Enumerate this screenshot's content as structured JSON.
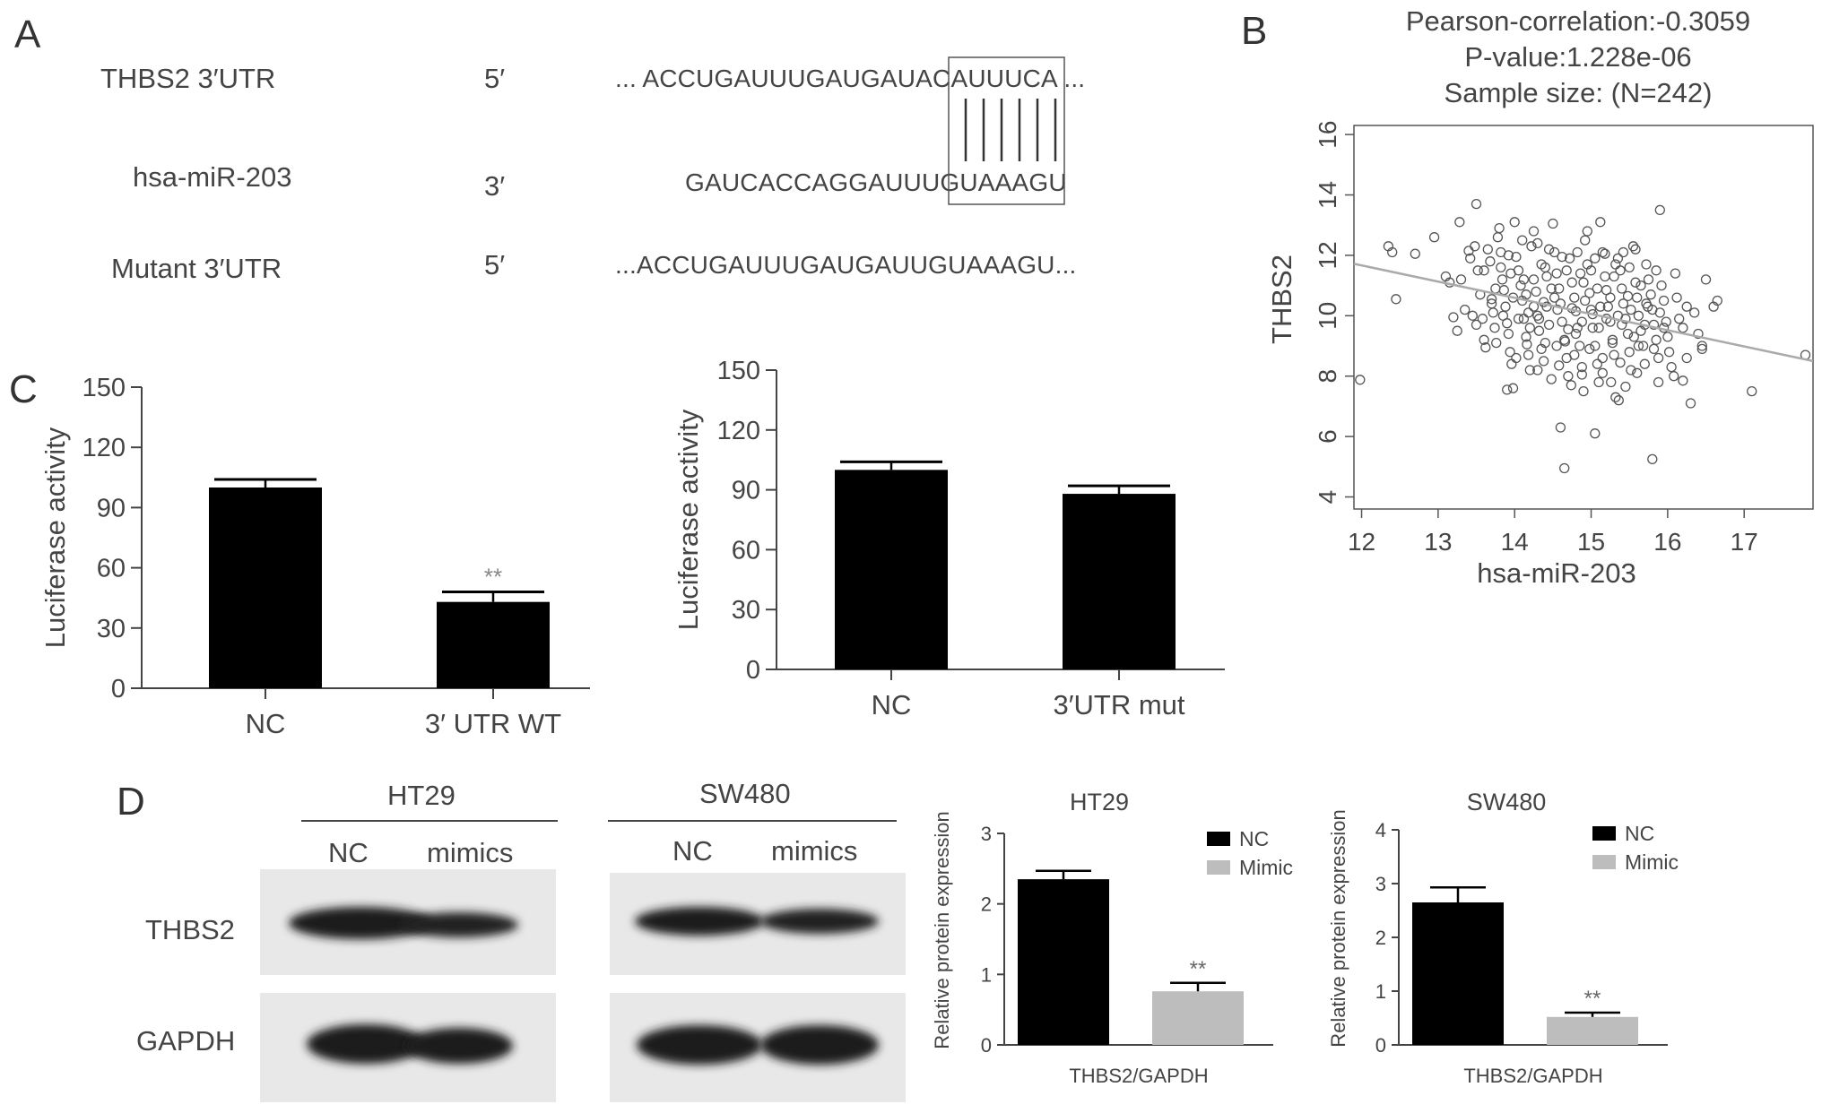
{
  "panels": {
    "a": "A",
    "b": "B",
    "c": "C",
    "d": "D"
  },
  "panel_a": {
    "rows": [
      {
        "label": "THBS2 3′UTR",
        "end": "5′",
        "sequence": "... ACCUGAUUUGAUGAUACAUUUCA ..."
      },
      {
        "label": "hsa-miR-203",
        "end": "3′",
        "sequence": "GAUCACCAGGAUUUGUAAAGU"
      },
      {
        "label": "Mutant 3′UTR",
        "end": "5′",
        "sequence": "...ACCUGAUUUGAUGAUUGUAAAGU..."
      }
    ]
  },
  "panel_d_blots": {
    "left": {
      "cell_line": "HT29",
      "lanes": [
        "NC",
        "mimics"
      ]
    },
    "right": {
      "cell_line": "SW480",
      "lanes": [
        "NC",
        "mimics"
      ]
    },
    "rows": [
      "THBS2",
      "GAPDH"
    ]
  },
  "chart_data": [
    {
      "id": "b",
      "type": "scatter",
      "title": "Pearson-correlation:-0.3059",
      "subtitle": [
        "P-value:1.228e-06",
        "Sample size: (N=242)"
      ],
      "xlabel": "hsa-miR-203",
      "ylabel": "THBS2",
      "xlim": [
        11.9,
        17.9
      ],
      "ylim": [
        3.6,
        16.3
      ],
      "xticks": [
        12,
        13,
        14,
        15,
        16,
        17
      ],
      "yticks": [
        4,
        6,
        8,
        10,
        12,
        14,
        16
      ],
      "fit_line": {
        "x": [
          11.9,
          17.9
        ],
        "y": [
          11.72,
          8.5
        ]
      },
      "points": [
        [
          11.98,
          7.88
        ],
        [
          12.45,
          10.55
        ],
        [
          12.35,
          12.3
        ],
        [
          12.4,
          12.1
        ],
        [
          12.7,
          12.05
        ],
        [
          12.95,
          12.6
        ],
        [
          13.1,
          11.3
        ],
        [
          13.15,
          11.1
        ],
        [
          13.2,
          9.95
        ],
        [
          13.25,
          9.5
        ],
        [
          13.28,
          13.1
        ],
        [
          13.35,
          10.2
        ],
        [
          13.4,
          12.15
        ],
        [
          13.42,
          11.9
        ],
        [
          13.48,
          12.3
        ],
        [
          13.5,
          13.7
        ],
        [
          13.52,
          11.5
        ],
        [
          13.55,
          10.7
        ],
        [
          13.58,
          9.9
        ],
        [
          13.6,
          9.2
        ],
        [
          13.62,
          8.95
        ],
        [
          13.65,
          12.2
        ],
        [
          13.68,
          11.8
        ],
        [
          13.7,
          10.55
        ],
        [
          13.72,
          10.1
        ],
        [
          13.74,
          9.6
        ],
        [
          13.76,
          9.1
        ],
        [
          13.78,
          12.6
        ],
        [
          13.8,
          12.9
        ],
        [
          13.82,
          11.6
        ],
        [
          13.84,
          11.2
        ],
        [
          13.86,
          10.85
        ],
        [
          13.88,
          10.3
        ],
        [
          13.9,
          9.75
        ],
        [
          13.92,
          9.4
        ],
        [
          13.94,
          8.8
        ],
        [
          13.96,
          8.4
        ],
        [
          13.98,
          7.6
        ],
        [
          14.0,
          13.1
        ],
        [
          14.02,
          11.95
        ],
        [
          14.05,
          11.5
        ],
        [
          14.08,
          11.0
        ],
        [
          14.1,
          10.5
        ],
        [
          14.12,
          9.9
        ],
        [
          14.15,
          9.3
        ],
        [
          14.18,
          8.7
        ],
        [
          14.2,
          8.2
        ],
        [
          14.22,
          12.3
        ],
        [
          14.25,
          11.2
        ],
        [
          14.28,
          10.8
        ],
        [
          14.3,
          10.0
        ],
        [
          14.32,
          9.5
        ],
        [
          14.35,
          8.9
        ],
        [
          14.38,
          8.5
        ],
        [
          14.4,
          11.6
        ],
        [
          14.42,
          10.3
        ],
        [
          14.45,
          9.7
        ],
        [
          14.48,
          7.9
        ],
        [
          14.5,
          13.05
        ],
        [
          14.52,
          12.1
        ],
        [
          14.55,
          11.4
        ],
        [
          14.58,
          10.9
        ],
        [
          14.6,
          10.4
        ],
        [
          14.62,
          9.8
        ],
        [
          14.65,
          9.2
        ],
        [
          14.68,
          8.6
        ],
        [
          14.7,
          8.0
        ],
        [
          14.72,
          11.9
        ],
        [
          14.75,
          11.1
        ],
        [
          14.78,
          10.6
        ],
        [
          14.8,
          10.15
        ],
        [
          14.82,
          9.6
        ],
        [
          14.85,
          9.0
        ],
        [
          14.88,
          8.3
        ],
        [
          14.9,
          7.5
        ],
        [
          14.92,
          12.5
        ],
        [
          14.95,
          11.7
        ],
        [
          14.98,
          10.75
        ],
        [
          15.0,
          10.2
        ],
        [
          15.02,
          9.6
        ],
        [
          15.05,
          9.0
        ],
        [
          15.08,
          8.4
        ],
        [
          15.1,
          7.8
        ],
        [
          15.12,
          13.1
        ],
        [
          15.15,
          12.1
        ],
        [
          15.18,
          11.3
        ],
        [
          15.2,
          10.85
        ],
        [
          15.22,
          10.3
        ],
        [
          15.25,
          9.8
        ],
        [
          15.28,
          9.2
        ],
        [
          15.3,
          8.7
        ],
        [
          15.32,
          7.3
        ],
        [
          15.35,
          11.9
        ],
        [
          15.38,
          11.5
        ],
        [
          15.4,
          10.9
        ],
        [
          15.42,
          10.4
        ],
        [
          15.45,
          9.9
        ],
        [
          15.48,
          9.4
        ],
        [
          15.5,
          8.8
        ],
        [
          15.52,
          8.2
        ],
        [
          15.55,
          12.3
        ],
        [
          15.58,
          11.1
        ],
        [
          15.6,
          10.6
        ],
        [
          15.62,
          10.0
        ],
        [
          15.65,
          9.5
        ],
        [
          15.68,
          9.0
        ],
        [
          15.7,
          8.4
        ],
        [
          15.72,
          11.7
        ],
        [
          15.75,
          11.2
        ],
        [
          15.78,
          10.7
        ],
        [
          15.8,
          10.2
        ],
        [
          15.82,
          9.7
        ],
        [
          15.85,
          9.2
        ],
        [
          15.88,
          8.6
        ],
        [
          15.9,
          13.5
        ],
        [
          15.92,
          11.0
        ],
        [
          15.95,
          10.5
        ],
        [
          15.98,
          9.8
        ],
        [
          16.0,
          9.3
        ],
        [
          16.02,
          8.8
        ],
        [
          16.05,
          8.3
        ],
        [
          16.1,
          11.4
        ],
        [
          16.12,
          10.6
        ],
        [
          16.15,
          9.9
        ],
        [
          16.2,
          9.6
        ],
        [
          16.25,
          8.6
        ],
        [
          16.3,
          7.1
        ],
        [
          16.35,
          10.1
        ],
        [
          16.4,
          9.4
        ],
        [
          16.45,
          8.9
        ],
        [
          16.5,
          11.2
        ],
        [
          16.6,
          10.3
        ],
        [
          16.65,
          10.5
        ],
        [
          17.1,
          7.5
        ],
        [
          17.8,
          8.7
        ],
        [
          14.6,
          6.3
        ],
        [
          14.65,
          4.95
        ],
        [
          15.05,
          6.1
        ],
        [
          15.8,
          5.25
        ],
        [
          13.9,
          7.55
        ],
        [
          14.3,
          12.4
        ],
        [
          14.45,
          12.2
        ],
        [
          13.3,
          11.2
        ],
        [
          14.15,
          10.7
        ],
        [
          14.55,
          9.0
        ],
        [
          15.15,
          8.1
        ],
        [
          15.45,
          7.65
        ],
        [
          15.6,
          8.1
        ],
        [
          14.75,
          10.25
        ],
        [
          14.05,
          9.9
        ],
        [
          13.45,
          10.0
        ],
        [
          15.25,
          10.6
        ],
        [
          14.9,
          11.1
        ],
        [
          15.0,
          11.5
        ],
        [
          14.25,
          10.3
        ],
        [
          13.7,
          10.4
        ],
        [
          15.35,
          10.0
        ],
        [
          14.8,
          9.4
        ],
        [
          15.7,
          9.7
        ],
        [
          14.35,
          11.7
        ],
        [
          13.95,
          11.4
        ],
        [
          15.5,
          11.6
        ],
        [
          14.68,
          11.5
        ],
        [
          15.1,
          9.6
        ],
        [
          14.4,
          9.1
        ],
        [
          15.9,
          10.1
        ],
        [
          13.85,
          10.0
        ],
        [
          14.52,
          10.6
        ],
        [
          15.3,
          11.3
        ],
        [
          14.12,
          11.2
        ],
        [
          15.62,
          9.0
        ],
        [
          14.88,
          9.8
        ],
        [
          14.98,
          8.9
        ],
        [
          15.82,
          8.9
        ],
        [
          14.2,
          9.6
        ],
        [
          13.6,
          11.5
        ],
        [
          15.2,
          9.9
        ],
        [
          14.3,
          8.2
        ],
        [
          15.42,
          12.1
        ],
        [
          14.92,
          10.5
        ],
        [
          15.72,
          10.4
        ],
        [
          13.75,
          10.9
        ],
        [
          14.62,
          11.95
        ],
        [
          15.12,
          10.3
        ],
        [
          14.48,
          10.9
        ],
        [
          15.56,
          9.3
        ],
        [
          14.02,
          8.6
        ],
        [
          15.38,
          8.45
        ],
        [
          14.7,
          9.55
        ],
        [
          15.05,
          11.9
        ],
        [
          14.18,
          10.1
        ],
        [
          15.65,
          11.0
        ],
        [
          13.98,
          10.6
        ],
        [
          14.82,
          12.1
        ],
        [
          15.28,
          9.1
        ],
        [
          14.42,
          11.3
        ],
        [
          15.48,
          10.65
        ],
        [
          14.58,
          8.35
        ],
        [
          15.95,
          9.6
        ],
        [
          13.5,
          9.7
        ],
        [
          15.18,
          12.05
        ],
        [
          14.1,
          12.5
        ],
        [
          14.78,
          8.7
        ],
        [
          15.85,
          11.5
        ],
        [
          14.32,
          9.9
        ],
        [
          15.08,
          10.9
        ],
        [
          14.95,
          12.8
        ],
        [
          15.58,
          12.2
        ],
        [
          14.25,
          12.8
        ],
        [
          15.32,
          11.7
        ],
        [
          13.82,
          12.1
        ],
        [
          14.66,
          9.15
        ],
        [
          15.15,
          8.6
        ],
        [
          14.38,
          10.45
        ],
        [
          15.52,
          10.2
        ],
        [
          14.86,
          11.4
        ],
        [
          15.02,
          10.05
        ],
        [
          14.56,
          10.2
        ],
        [
          15.4,
          9.7
        ],
        [
          14.16,
          9.05
        ],
        [
          15.74,
          10.3
        ],
        [
          13.92,
          12.0
        ],
        [
          15.26,
          7.8
        ],
        [
          14.74,
          7.7
        ],
        [
          15.36,
          7.2
        ],
        [
          16.45,
          9.0
        ],
        [
          16.25,
          10.3
        ],
        [
          16.08,
          8.0
        ],
        [
          15.88,
          7.8
        ],
        [
          16.2,
          7.85
        ],
        [
          14.88,
          8.05
        ]
      ]
    },
    {
      "id": "c-left",
      "type": "bar",
      "categories": [
        "NC",
        "3′ UTR WT"
      ],
      "values": [
        100,
        43
      ],
      "errors": [
        4,
        5
      ],
      "annotations": [
        "",
        "**"
      ],
      "ylabel": "Luciferase activity",
      "ylim": [
        0,
        150
      ],
      "yticks": [
        0,
        30,
        60,
        90,
        120,
        150
      ],
      "color": "#000000"
    },
    {
      "id": "c-right",
      "type": "bar",
      "categories": [
        "NC",
        "3′UTR mut"
      ],
      "values": [
        100,
        88
      ],
      "errors": [
        4,
        4
      ],
      "annotations": [
        "",
        ""
      ],
      "ylabel": "Luciferase activity",
      "ylim": [
        0,
        150
      ],
      "yticks": [
        0,
        30,
        60,
        90,
        120,
        150
      ],
      "color": "#000000"
    },
    {
      "id": "d-ht29",
      "type": "bar",
      "title": "HT29",
      "categories": [
        "THBS2/GAPDH"
      ],
      "series": [
        {
          "name": "NC",
          "values": [
            2.35
          ],
          "errors": [
            0.12
          ],
          "color": "#000000"
        },
        {
          "name": "Mimic",
          "values": [
            0.76
          ],
          "errors": [
            0.12
          ],
          "color": "#bdbdbd"
        }
      ],
      "annotations": [
        "",
        "**"
      ],
      "ylabel": "Relative protein expression",
      "ylim": [
        0,
        3
      ],
      "yticks": [
        0,
        1,
        2,
        3
      ],
      "legend": "top-right"
    },
    {
      "id": "d-sw480",
      "type": "bar",
      "title": "SW480",
      "categories": [
        "THBS2/GAPDH"
      ],
      "series": [
        {
          "name": "NC",
          "values": [
            2.65
          ],
          "errors": [
            0.28
          ],
          "color": "#000000"
        },
        {
          "name": "Mimic",
          "values": [
            0.52
          ],
          "errors": [
            0.08
          ],
          "color": "#bdbdbd"
        }
      ],
      "annotations": [
        "",
        "**"
      ],
      "ylabel": "Relative protein expression",
      "ylim": [
        0,
        4
      ],
      "yticks": [
        0,
        1,
        2,
        3,
        4
      ],
      "legend": "top-right"
    }
  ]
}
